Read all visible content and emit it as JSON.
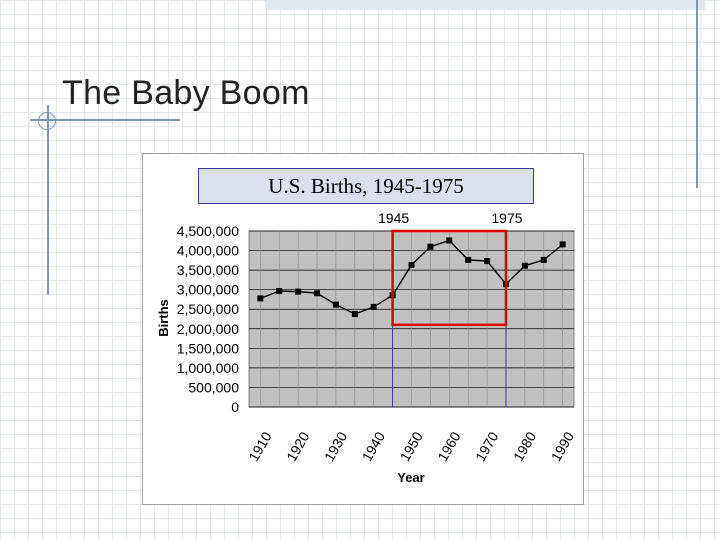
{
  "slide": {
    "title": "The Baby Boom"
  },
  "chart_data": {
    "type": "line",
    "title": "U.S. Births, 1945-1975",
    "xlabel": "Year",
    "ylabel": "Births",
    "x": [
      1910,
      1915,
      1920,
      1925,
      1930,
      1935,
      1940,
      1945,
      1950,
      1955,
      1960,
      1965,
      1970,
      1975,
      1980,
      1985,
      1990
    ],
    "series": [
      {
        "values": [
          2777000,
          2965000,
          2950000,
          2909000,
          2618000,
          2377000,
          2559000,
          2858000,
          3632000,
          4097000,
          4258000,
          3760000,
          3731000,
          3144000,
          3612000,
          3761000,
          4158000
        ],
        "color": "#000000"
      }
    ],
    "ylim": [
      0,
      4500000
    ],
    "yticks": [
      0,
      500000,
      1000000,
      1500000,
      2000000,
      2500000,
      3000000,
      3500000,
      4000000,
      4500000
    ],
    "ytick_labels": [
      "0",
      "500,000",
      "1,000,000",
      "1,500,000",
      "2,000,000",
      "2,500,000",
      "3,000,000",
      "3,500,000",
      "4,000,000",
      "4,500,000"
    ],
    "xticks": [
      1910,
      1920,
      1930,
      1940,
      1950,
      1960,
      1970,
      1980,
      1990
    ],
    "xtick_labels": [
      "1910",
      "1920",
      "1930",
      "1940",
      "1950",
      "1960",
      "1970",
      "1980",
      "1990"
    ],
    "xlim": [
      1907,
      1993
    ],
    "grid": true,
    "plot_background": "#c0c0c0",
    "highlight": {
      "x_start": 1945,
      "x_end": 1975,
      "y_top": 4500000,
      "y_bottom": 2100000,
      "color": "#e00000"
    },
    "annotations": [
      {
        "text": "1945",
        "x": 1945
      },
      {
        "text": "1975",
        "x": 1975
      }
    ]
  }
}
